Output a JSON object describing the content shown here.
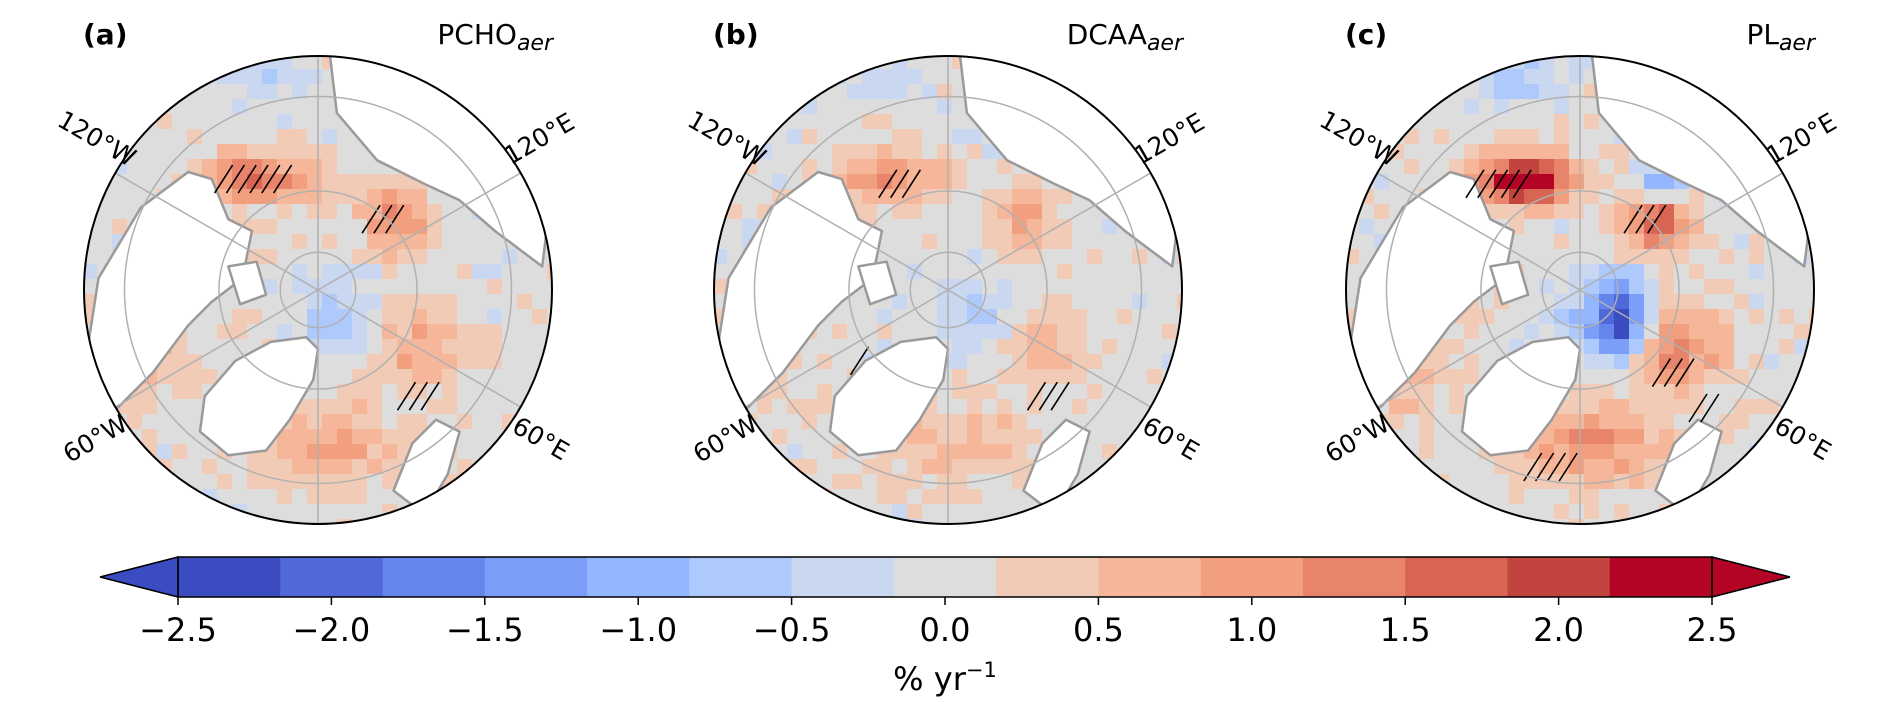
{
  "panels": [
    {
      "letter": "(a)",
      "title_main": "PCHO",
      "title_sub": "aer",
      "intensity": 1.0
    },
    {
      "letter": "(b)",
      "title_main": "DCAA",
      "title_sub": "aer",
      "intensity": 0.75
    },
    {
      "letter": "(c)",
      "title_main": "PL",
      "title_sub": "aer",
      "intensity": 1.35
    }
  ],
  "longitude_labels": {
    "w120": "120°W",
    "e120": "120°E",
    "w60": "60°W",
    "e60": "60°E"
  },
  "colorbar": {
    "ticks": [
      "−2.5",
      "−2.0",
      "−1.5",
      "−1.0",
      "−0.5",
      "0.0",
      "0.5",
      "1.0",
      "1.5",
      "2.0",
      "2.5"
    ],
    "colors": [
      "#3b4cc0",
      "#4f69d9",
      "#6485ec",
      "#7b9ff9",
      "#94b6ff",
      "#aec9fc",
      "#c9d7f0",
      "#dddddd",
      "#f2cbb7",
      "#f5b69a",
      "#f29f80",
      "#e7846b",
      "#d86553",
      "#c2443f",
      "#b40426"
    ],
    "extend_left_color": "#3b4cc0",
    "extend_right_color": "#b40426",
    "label_main": "% yr",
    "label_sup": "−1",
    "range": [
      -2.5,
      2.5
    ]
  },
  "colors": {
    "land": "#ffffff",
    "coast": "#9a9a9a",
    "grid": "#b0b0b0",
    "hatch": "#000000",
    "neutral": "#dcdcdc"
  }
}
